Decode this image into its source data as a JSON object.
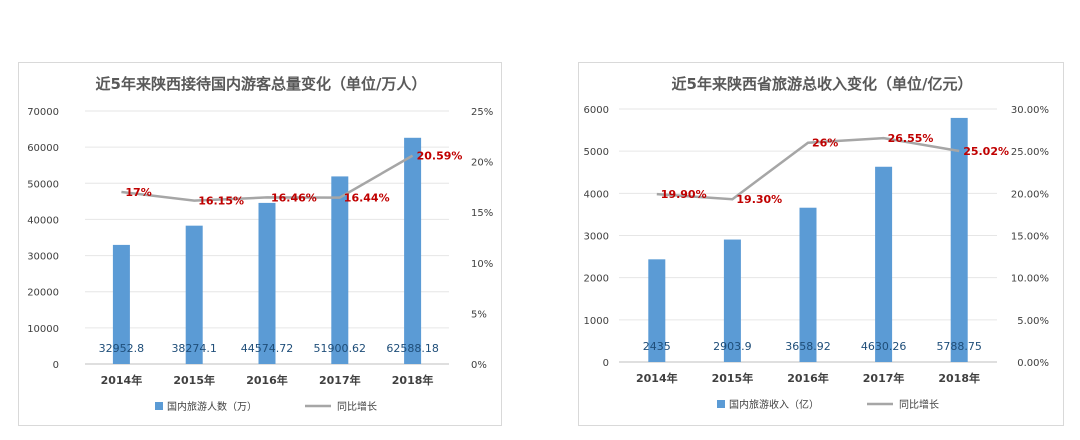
{
  "chart_data": [
    {
      "type": "bar",
      "title": "近5年来陕西接待国内游客总量变化（单位/万人）",
      "categories": [
        "2014年",
        "2015年",
        "2016年",
        "2017年",
        "2018年"
      ],
      "series": [
        {
          "name": "国内旅游人数（万）",
          "type": "bar",
          "axis": "left",
          "values": [
            32952.8,
            38274.1,
            44574.72,
            51900.62,
            62588.18
          ],
          "labels": [
            "32952.8",
            "38274.1",
            "44574.72",
            "51900.62",
            "62588.18"
          ]
        },
        {
          "name": "同比增长",
          "type": "line",
          "axis": "right",
          "values": [
            17,
            16.15,
            16.46,
            16.44,
            20.59
          ],
          "labels": [
            "17%",
            "16.15%",
            "16.46%",
            "16.44%",
            "20.59%"
          ]
        }
      ],
      "yleft": {
        "ylim": [
          0,
          70000
        ],
        "ticks": [
          "0",
          "10000",
          "20000",
          "30000",
          "40000",
          "50000",
          "60000",
          "70000"
        ]
      },
      "yright": {
        "ylim": [
          0,
          25
        ],
        "ticks": [
          "0%",
          "5%",
          "10%",
          "15%",
          "20%",
          "25%"
        ]
      },
      "grid": true,
      "legend": "bottom",
      "colors": {
        "bar": "#5b9bd5",
        "line": "#a6a6a6",
        "line_label": "#c00000",
        "bar_label": "#1f4e79"
      }
    },
    {
      "type": "bar",
      "title": "近5年来陕西省旅游总收入变化（单位/亿元）",
      "categories": [
        "2014年",
        "2015年",
        "2016年",
        "2017年",
        "2018年"
      ],
      "series": [
        {
          "name": "国内旅游收入（亿）",
          "type": "bar",
          "axis": "left",
          "values": [
            2435,
            2903.9,
            3658.92,
            4630.26,
            5788.75
          ],
          "labels": [
            "2435",
            "2903.9",
            "3658.92",
            "4630.26",
            "5788.75"
          ]
        },
        {
          "name": "同比增长",
          "type": "line",
          "axis": "right",
          "values": [
            19.9,
            19.3,
            26,
            26.55,
            25.02
          ],
          "labels": [
            "19.90%",
            "19.30%",
            "26%",
            "26.55%",
            "25.02%"
          ]
        }
      ],
      "yleft": {
        "ylim": [
          0,
          6000
        ],
        "ticks": [
          "0",
          "1000",
          "2000",
          "3000",
          "4000",
          "5000",
          "6000"
        ]
      },
      "yright": {
        "ylim": [
          0,
          30
        ],
        "ticks": [
          "0.00%",
          "5.00%",
          "10.00%",
          "15.00%",
          "20.00%",
          "25.00%",
          "30.00%"
        ]
      },
      "grid": true,
      "legend": "bottom",
      "colors": {
        "bar": "#5b9bd5",
        "line": "#a6a6a6",
        "line_label": "#c00000",
        "bar_label": "#1f4e79"
      }
    }
  ]
}
